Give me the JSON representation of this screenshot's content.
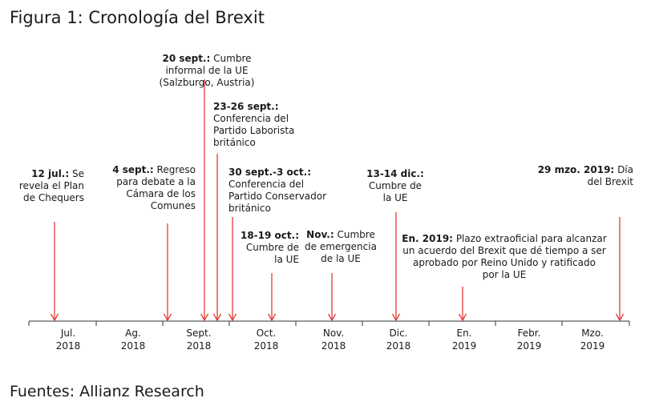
{
  "title": "Figura 1: Cronología del Brexit",
  "source": "Fuentes: Allianz Research",
  "colors": {
    "arrow": "#e53935",
    "axis": "#333333",
    "text": "#1a1a1a"
  },
  "axis": [
    {
      "month": "Jul.",
      "year": "2018"
    },
    {
      "month": "Ag.",
      "year": "2018"
    },
    {
      "month": "Sept.",
      "year": "2018"
    },
    {
      "month": "Oct.",
      "year": "2018"
    },
    {
      "month": "Nov.",
      "year": "2018"
    },
    {
      "month": "Dic.",
      "year": "2018"
    },
    {
      "month": "En.",
      "year": "2019"
    },
    {
      "month": "Febr.",
      "year": "2019"
    },
    {
      "month": "Mzo.",
      "year": "2019"
    }
  ],
  "events": [
    {
      "date": "12 jul.:",
      "text": "Se\nrevela el Plan\nde Chequers"
    },
    {
      "date": "4 sept.:",
      "text": "Regreso\npara debate a la\nCámara de los\nComunes"
    },
    {
      "date": "20 sept.:",
      "text": "Cumbre\ninformal de la UE\n(Salzburgo, Austria)"
    },
    {
      "date": "23-26 sept.:",
      "text": "\nConferencia del\nPartido Laborista\nbritánico"
    },
    {
      "date": "30 sept.-3 oct.:",
      "text": "\nConferencia del\nPartido Conservador\nbritánico"
    },
    {
      "date": "18-19 oct.:",
      "text": "\nCumbre de\nla UE"
    },
    {
      "date": "Nov.:",
      "text": "Cumbre\nde emergencia\nde la UE"
    },
    {
      "date": "13-14 dic.:",
      "text": "\nCumbre de\nla UE"
    },
    {
      "date": "En. 2019:",
      "text": "Plazo extraoficial para alcanzar\nun acuerdo del Brexit que dé tiempo a ser\naprobado por Reino Unido y ratificado\npor la UE"
    },
    {
      "date": "29 mzo. 2019:",
      "text": "Día\ndel Brexit"
    }
  ]
}
